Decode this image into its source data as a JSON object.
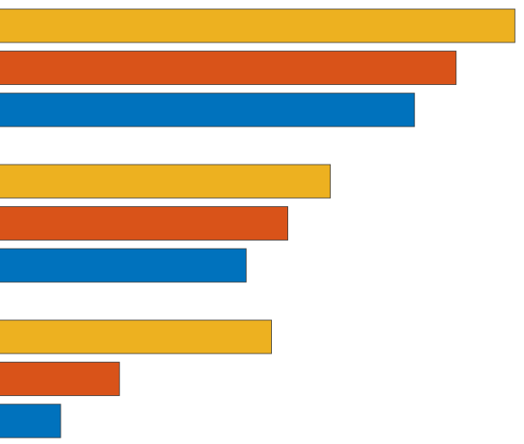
{
  "chart_data": {
    "type": "bar",
    "orientation": "horizontal",
    "categories": [
      null,
      null,
      null
    ],
    "series": [
      {
        "color": "#EDB120",
        "values": [
          570,
          366,
          301
        ]
      },
      {
        "color": "#D95319",
        "values": [
          505,
          319,
          133
        ]
      },
      {
        "color": "#0072BD",
        "values": [
          459,
          273,
          68
        ]
      }
    ],
    "xlim": [
      0,
      580
    ]
  }
}
